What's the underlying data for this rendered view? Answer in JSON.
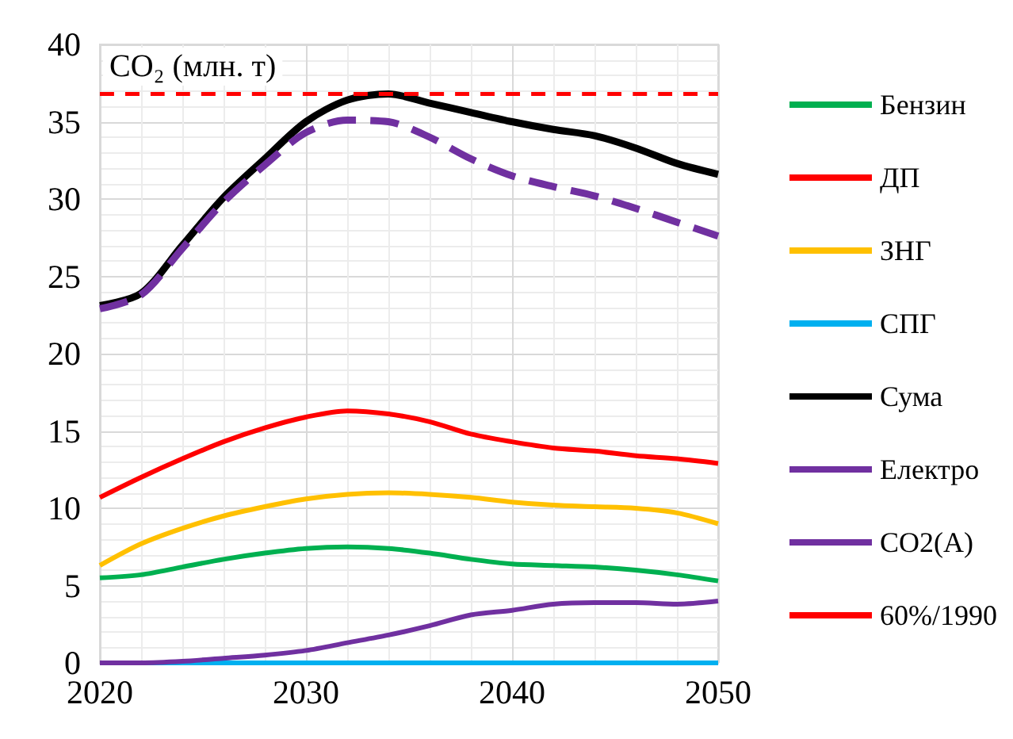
{
  "chart_data": {
    "type": "line",
    "title": "CO₂ (млн. т)",
    "x": [
      2020,
      2022,
      2024,
      2026,
      2028,
      2030,
      2032,
      2034,
      2036,
      2038,
      2040,
      2042,
      2044,
      2046,
      2048,
      2050
    ],
    "series": [
      {
        "name": "Бензин",
        "color": "#00b050",
        "values": [
          5.5,
          5.7,
          6.2,
          6.7,
          7.1,
          7.4,
          7.5,
          7.4,
          7.1,
          6.7,
          6.4,
          6.3,
          6.2,
          6.0,
          5.7,
          5.3
        ]
      },
      {
        "name": "ДП",
        "color": "#ff0000",
        "values": [
          10.7,
          12.0,
          13.2,
          14.3,
          15.2,
          15.9,
          16.3,
          16.1,
          15.6,
          14.8,
          14.3,
          13.9,
          13.7,
          13.4,
          13.2,
          12.9
        ]
      },
      {
        "name": "ЗНГ",
        "color": "#ffc000",
        "values": [
          6.3,
          7.7,
          8.7,
          9.5,
          10.1,
          10.6,
          10.9,
          11.0,
          10.9,
          10.7,
          10.4,
          10.2,
          10.1,
          10.0,
          9.7,
          9.0
        ]
      },
      {
        "name": "СПГ",
        "color": "#00b0f0",
        "values": [
          0,
          0,
          0,
          0,
          0,
          0,
          0,
          0,
          0,
          0,
          0,
          0,
          0,
          0,
          0,
          0
        ]
      },
      {
        "name": "Сума",
        "color": "#000000",
        "values": [
          23.1,
          23.9,
          27.0,
          30.1,
          32.6,
          35.0,
          36.4,
          36.8,
          36.2,
          35.6,
          35.0,
          34.5,
          34.1,
          33.3,
          32.3,
          31.6
        ]
      },
      {
        "name": "Електро",
        "color": "#7030a0",
        "values": [
          0,
          0,
          0.1,
          0.3,
          0.5,
          0.8,
          1.3,
          1.8,
          2.4,
          3.1,
          3.4,
          3.8,
          3.9,
          3.9,
          3.8,
          4.0
        ]
      },
      {
        "name": "CO2(A)",
        "color": "#7030a0",
        "line_style": "dashed",
        "values": [
          22.9,
          23.8,
          26.8,
          29.8,
          32.2,
          34.3,
          35.1,
          35.0,
          34.0,
          32.6,
          31.5,
          30.8,
          30.2,
          29.4,
          28.5,
          27.6
        ]
      },
      {
        "name": "60%/1990",
        "color": "#ff0000",
        "line_style": "dotted",
        "x": [
          2020,
          2050
        ],
        "values": [
          36.8,
          36.8
        ]
      }
    ],
    "xlim": [
      2020,
      2050
    ],
    "xticks": [
      2020,
      2030,
      2040,
      2050
    ],
    "ylim": [
      0,
      40
    ],
    "yticks": [
      0,
      5,
      10,
      15,
      20,
      25,
      30,
      35,
      40
    ],
    "grid": true,
    "legend": "right",
    "marker": "none"
  }
}
